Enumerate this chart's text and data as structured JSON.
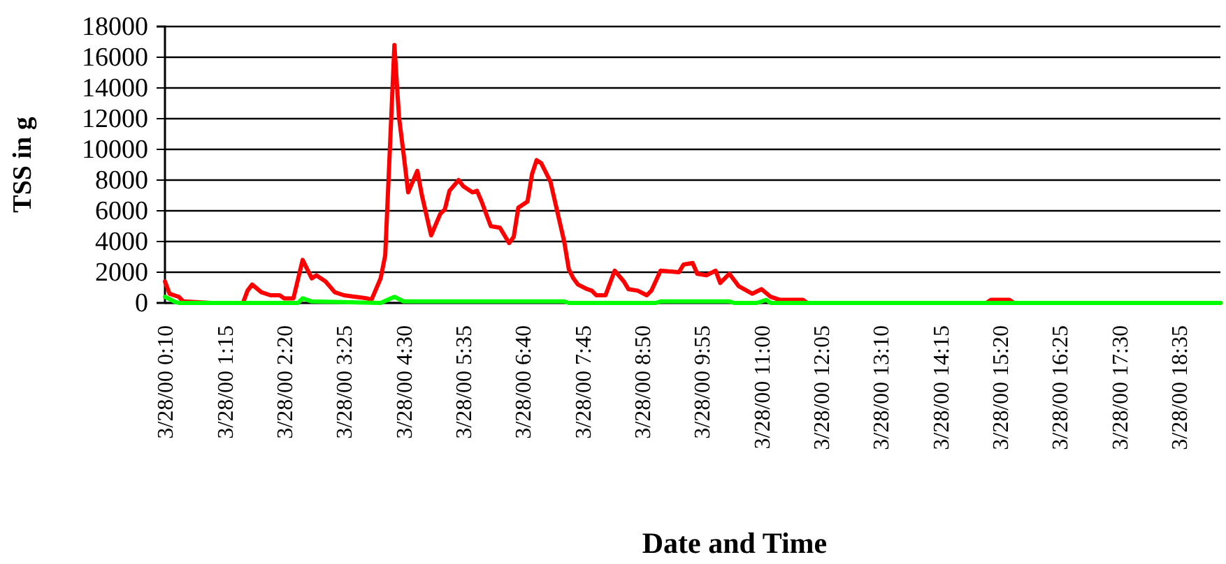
{
  "chart_data": {
    "type": "line",
    "xlabel": "Date and Time",
    "ylabel": "TSS in g",
    "xlim": [
      "2000-03-28T00:10",
      "2000-03-28T19:20"
    ],
    "ylim": [
      0,
      18000
    ],
    "yticks": [
      0,
      2000,
      4000,
      6000,
      8000,
      10000,
      12000,
      14000,
      16000,
      18000
    ],
    "xticks": [
      {
        "value": "2000-03-28T00:10",
        "label": "3/28/00 0:10"
      },
      {
        "value": "2000-03-28T01:15",
        "label": "3/28/00 1:15"
      },
      {
        "value": "2000-03-28T02:20",
        "label": "3/28/00 2:20"
      },
      {
        "value": "2000-03-28T03:25",
        "label": "3/28/00 3:25"
      },
      {
        "value": "2000-03-28T04:30",
        "label": "3/28/00 4:30"
      },
      {
        "value": "2000-03-28T05:35",
        "label": "3/28/00 5:35"
      },
      {
        "value": "2000-03-28T06:40",
        "label": "3/28/00 6:40"
      },
      {
        "value": "2000-03-28T07:45",
        "label": "3/28/00 7:45"
      },
      {
        "value": "2000-03-28T08:50",
        "label": "3/28/00 8:50"
      },
      {
        "value": "2000-03-28T09:55",
        "label": "3/28/00 9:55"
      },
      {
        "value": "2000-03-28T11:00",
        "label": "3/28/00 11:00"
      },
      {
        "value": "2000-03-28T12:05",
        "label": "3/28/00 12:05"
      },
      {
        "value": "2000-03-28T13:10",
        "label": "3/28/00 13:10"
      },
      {
        "value": "2000-03-28T14:15",
        "label": "3/28/00 14:15"
      },
      {
        "value": "2000-03-28T15:20",
        "label": "3/28/00 15:20"
      },
      {
        "value": "2000-03-28T16:25",
        "label": "3/28/00 16:25"
      },
      {
        "value": "2000-03-28T17:30",
        "label": "3/28/00 17:30"
      },
      {
        "value": "2000-03-28T18:35",
        "label": "3/28/00 18:35"
      }
    ],
    "grid": "y",
    "marker": "none",
    "line_style": "solid",
    "series": [
      {
        "color": "#ff0000",
        "x": [
          "2000-03-28T00:10",
          "2000-03-28T00:15",
          "2000-03-28T00:25",
          "2000-03-28T00:30",
          "2000-03-28T01:00",
          "2000-03-28T01:10",
          "2000-03-28T01:35",
          "2000-03-28T01:40",
          "2000-03-28T01:45",
          "2000-03-28T01:55",
          "2000-03-28T02:05",
          "2000-03-28T02:15",
          "2000-03-28T02:20",
          "2000-03-28T02:30",
          "2000-03-28T02:40",
          "2000-03-28T02:50",
          "2000-03-28T02:55",
          "2000-03-28T03:05",
          "2000-03-28T03:15",
          "2000-03-28T03:25",
          "2000-03-28T03:50",
          "2000-03-28T03:55",
          "2000-03-28T04:05",
          "2000-03-28T04:10",
          "2000-03-28T04:20",
          "2000-03-28T04:25",
          "2000-03-28T04:30",
          "2000-03-28T04:35",
          "2000-03-28T04:45",
          "2000-03-28T04:50",
          "2000-03-28T05:00",
          "2000-03-28T05:10",
          "2000-03-28T05:15",
          "2000-03-28T05:20",
          "2000-03-28T05:30",
          "2000-03-28T05:35",
          "2000-03-28T05:45",
          "2000-03-28T05:50",
          "2000-03-28T05:55",
          "2000-03-28T06:05",
          "2000-03-28T06:15",
          "2000-03-28T06:25",
          "2000-03-28T06:30",
          "2000-03-28T06:35",
          "2000-03-28T06:45",
          "2000-03-28T06:50",
          "2000-03-28T06:55",
          "2000-03-28T07:00",
          "2000-03-28T07:10",
          "2000-03-28T07:15",
          "2000-03-28T07:25",
          "2000-03-28T07:30",
          "2000-03-28T07:35",
          "2000-03-28T07:40",
          "2000-03-28T07:50",
          "2000-03-28T07:55",
          "2000-03-28T08:00",
          "2000-03-28T08:10",
          "2000-03-28T08:20",
          "2000-03-28T08:30",
          "2000-03-28T08:35",
          "2000-03-28T08:45",
          "2000-03-28T08:55",
          "2000-03-28T09:00",
          "2000-03-28T09:10",
          "2000-03-28T09:30",
          "2000-03-28T09:35",
          "2000-03-28T09:45",
          "2000-03-28T09:50",
          "2000-03-28T10:00",
          "2000-03-28T10:10",
          "2000-03-28T10:15",
          "2000-03-28T10:25",
          "2000-03-28T10:35",
          "2000-03-28T10:50",
          "2000-03-28T11:00",
          "2000-03-28T11:10",
          "2000-03-28T11:20",
          "2000-03-28T11:45",
          "2000-03-28T11:50",
          "2000-03-28T15:05",
          "2000-03-28T15:10",
          "2000-03-28T15:30",
          "2000-03-28T15:35",
          "2000-03-28T19:20"
        ],
        "values": [
          1400,
          600,
          400,
          100,
          0,
          0,
          0,
          800,
          1200,
          700,
          500,
          500,
          300,
          300,
          2800,
          1600,
          1800,
          1400,
          700,
          500,
          300,
          200,
          1600,
          3100,
          16800,
          12100,
          9700,
          7200,
          8600,
          7000,
          4400,
          5800,
          6100,
          7300,
          8000,
          7600,
          7200,
          7300,
          6600,
          5000,
          4900,
          3900,
          4300,
          6200,
          6600,
          8400,
          9300,
          9100,
          7900,
          6600,
          4000,
          2200,
          1600,
          1200,
          900,
          800,
          500,
          500,
          2100,
          1400,
          900,
          800,
          500,
          800,
          2100,
          2000,
          2500,
          2600,
          1900,
          1800,
          2100,
          1300,
          1900,
          1100,
          600,
          900,
          400,
          200,
          200,
          0,
          0,
          200,
          200,
          0,
          0
        ]
      },
      {
        "color": "#00ff00",
        "x": [
          "2000-03-28T00:10",
          "2000-03-28T00:20",
          "2000-03-28T00:25",
          "2000-03-28T02:35",
          "2000-03-28T02:40",
          "2000-03-28T02:50",
          "2000-03-28T04:05",
          "2000-03-28T04:20",
          "2000-03-28T04:30",
          "2000-03-28T07:25",
          "2000-03-28T07:30",
          "2000-03-28T09:05",
          "2000-03-28T09:10",
          "2000-03-28T10:25",
          "2000-03-28T10:30",
          "2000-03-28T10:55",
          "2000-03-28T11:05",
          "2000-03-28T11:10",
          "2000-03-28T19:20"
        ],
        "values": [
          400,
          100,
          0,
          0,
          300,
          100,
          0,
          400,
          100,
          100,
          0,
          0,
          100,
          100,
          0,
          0,
          200,
          0,
          0
        ]
      }
    ]
  }
}
